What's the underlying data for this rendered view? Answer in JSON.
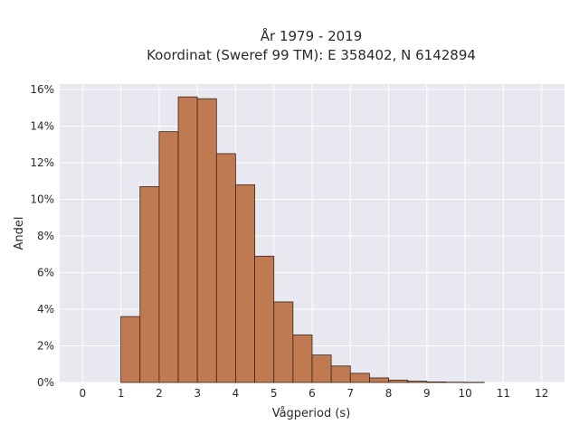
{
  "chart_data": {
    "type": "bar",
    "title_line1": "År 1979 - 2019",
    "title_line2": "Koordinat (Sweref 99 TM): E 358402, N 6142894",
    "xlabel": "Vågperiod (s)",
    "ylabel": "Andel",
    "xlim": [
      -0.6,
      12.6
    ],
    "ylim": [
      0,
      16.3
    ],
    "x_ticks": [
      0,
      1,
      2,
      3,
      4,
      5,
      6,
      7,
      8,
      9,
      10,
      11,
      12
    ],
    "x_tick_labels": [
      "0",
      "1",
      "2",
      "3",
      "4",
      "5",
      "6",
      "7",
      "8",
      "9",
      "10",
      "11",
      "12"
    ],
    "y_ticks": [
      0,
      2,
      4,
      6,
      8,
      10,
      12,
      14,
      16
    ],
    "y_tick_labels": [
      "0%",
      "2%",
      "4%",
      "6%",
      "8%",
      "10%",
      "12%",
      "14%",
      "16%"
    ],
    "bin_width": 0.5,
    "bins": [
      {
        "x_start": 1.0,
        "value": 3.6
      },
      {
        "x_start": 1.5,
        "value": 10.7
      },
      {
        "x_start": 2.0,
        "value": 13.7
      },
      {
        "x_start": 2.5,
        "value": 15.6
      },
      {
        "x_start": 3.0,
        "value": 15.5
      },
      {
        "x_start": 3.5,
        "value": 12.5
      },
      {
        "x_start": 4.0,
        "value": 10.8
      },
      {
        "x_start": 4.5,
        "value": 6.9
      },
      {
        "x_start": 5.0,
        "value": 4.4
      },
      {
        "x_start": 5.5,
        "value": 2.6
      },
      {
        "x_start": 6.0,
        "value": 1.5
      },
      {
        "x_start": 6.5,
        "value": 0.9
      },
      {
        "x_start": 7.0,
        "value": 0.5
      },
      {
        "x_start": 7.5,
        "value": 0.25
      },
      {
        "x_start": 8.0,
        "value": 0.13
      },
      {
        "x_start": 8.5,
        "value": 0.07
      },
      {
        "x_start": 9.0,
        "value": 0.03
      },
      {
        "x_start": 9.5,
        "value": 0.015
      },
      {
        "x_start": 10.0,
        "value": 0.008
      }
    ],
    "grid": true,
    "legend": "none",
    "colors": {
      "bar_fill": "#c07a52",
      "bar_edge": "#3a2418",
      "plot_bg": "#e8e8f0",
      "grid": "#ffffff"
    }
  }
}
